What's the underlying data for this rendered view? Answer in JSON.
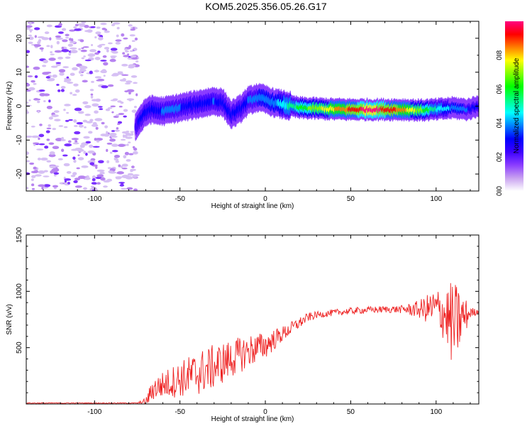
{
  "title": "KOM5.2025.356.05.26.G17",
  "colors": {
    "snr_line": "#ee2222",
    "axis": "#000000"
  },
  "chart_data": [
    {
      "type": "heatmap",
      "name": "spectrogram",
      "xlabel": "Height of straight line (km)",
      "ylabel": "Frequency (Hz)",
      "xlim": [
        -140,
        125
      ],
      "ylim": [
        -25,
        25
      ],
      "xticks": [
        -100,
        -50,
        0,
        50,
        100
      ],
      "yticks": [
        -20,
        -10,
        0,
        10,
        20
      ],
      "xtick_labels": [
        "-100",
        "-50",
        "0",
        "50",
        "100"
      ],
      "ytick_labels": [
        "-20",
        "-10",
        "0",
        "10",
        "20"
      ],
      "noise_region_km": [
        -140,
        -75
      ],
      "ridge": {
        "height_km": [
          -76,
          -72,
          -68,
          -60,
          -50,
          -40,
          -30,
          -25,
          -20,
          -15,
          -10,
          -5,
          0,
          5,
          10,
          20,
          30,
          40,
          50,
          60,
          70,
          80,
          90,
          100,
          110,
          118,
          125
        ],
        "frequency_hz": [
          -6,
          -3,
          -1,
          -1.5,
          -0.5,
          0.5,
          1.5,
          1,
          -2.5,
          -1,
          1.5,
          2.5,
          2,
          1,
          0.5,
          -0.5,
          -0.7,
          -0.9,
          -1,
          -1,
          -1,
          -1,
          -1.2,
          -1,
          -0.5,
          -1,
          0
        ],
        "amplitude": [
          0.25,
          0.3,
          0.3,
          0.35,
          0.35,
          0.3,
          0.35,
          0.3,
          0.3,
          0.3,
          0.35,
          0.35,
          0.4,
          0.4,
          0.45,
          0.6,
          0.7,
          0.8,
          0.9,
          1.0,
          0.95,
          0.85,
          0.7,
          0.5,
          0.4,
          0.35,
          0.3
        ]
      }
    },
    {
      "type": "line",
      "name": "snr",
      "xlabel": "Height of straight line (km)",
      "ylabel": "SNR (v/v)",
      "xlim": [
        -140,
        125
      ],
      "ylim": [
        0,
        1500
      ],
      "xticks": [
        -100,
        -50,
        0,
        50,
        100
      ],
      "yticks": [
        500,
        1000,
        1500
      ],
      "xtick_labels": [
        "-100",
        "-50",
        "0",
        "50",
        "100"
      ],
      "ytick_labels": [
        "500",
        "1000",
        "1500"
      ],
      "envelope": {
        "x": [
          -140,
          -75,
          -70,
          -66,
          -60,
          -50,
          -40,
          -30,
          -20,
          -10,
          0,
          10,
          20,
          25,
          30,
          40,
          50,
          60,
          70,
          80,
          90,
          100,
          105,
          110,
          115,
          120,
          125
        ],
        "mean": [
          8,
          8,
          15,
          130,
          170,
          220,
          270,
          330,
          400,
          470,
          520,
          620,
          720,
          770,
          790,
          810,
          825,
          835,
          840,
          840,
          840,
          850,
          800,
          700,
          760,
          810,
          820
        ],
        "amplitude": [
          4,
          4,
          40,
          100,
          120,
          160,
          200,
          200,
          170,
          150,
          120,
          70,
          50,
          40,
          30,
          30,
          30,
          30,
          30,
          35,
          80,
          180,
          250,
          400,
          250,
          50,
          20
        ]
      }
    },
    {
      "type": "colorbar",
      "name": "amplitude-colorbar",
      "label": "Normalized spectral amplitude",
      "range": [
        0,
        1
      ],
      "ticks": [
        0.0,
        0.2,
        0.4,
        0.6,
        0.8
      ],
      "tick_labels": [
        "0.0",
        "0.2",
        "0.4",
        "0.6",
        "0.8"
      ],
      "colors": [
        "#ffffff",
        "#c8a0f0",
        "#8a3cff",
        "#3c00ff",
        "#0000ff",
        "#0080ff",
        "#00ffff",
        "#00ff80",
        "#00ff00",
        "#80ff00",
        "#ffff00",
        "#ff8000",
        "#ff0000",
        "#ff0080"
      ]
    }
  ]
}
